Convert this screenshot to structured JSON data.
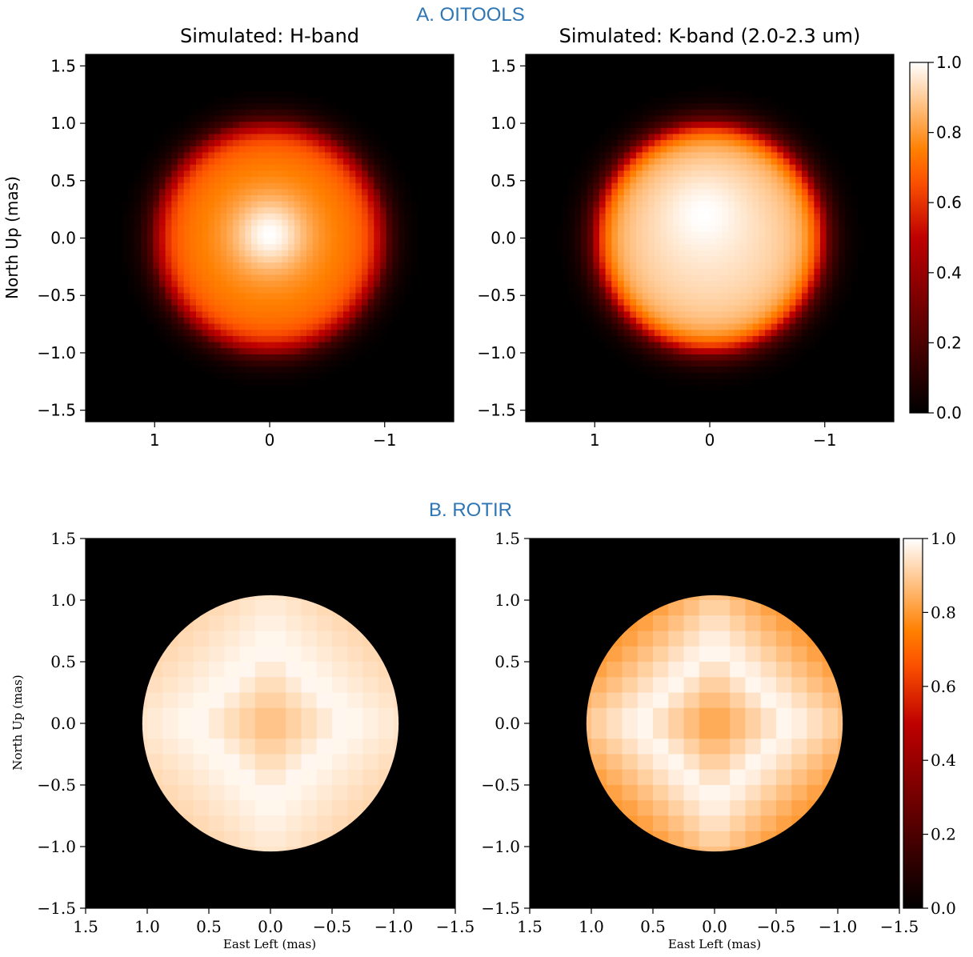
{
  "sections": [
    {
      "label": "A. OITOOLS"
    },
    {
      "label": "B. ROTIR"
    }
  ],
  "chart_data": [
    {
      "type": "heatmap",
      "title": "Simulated: H-band",
      "xlabel": "",
      "ylabel": "North Up (mas)",
      "xlim": [
        1.6,
        -1.6
      ],
      "ylim": [
        -1.6,
        1.6
      ],
      "xticks": [
        1,
        0,
        -1
      ],
      "xtick_labels": [
        "1",
        "0",
        "−1"
      ],
      "yticks": [
        1.5,
        1.0,
        0.5,
        0.0,
        -0.5,
        -1.0,
        -1.5
      ],
      "ytick_labels": [
        "1.5",
        "1.0",
        "0.5",
        "0.0",
        "−0.5",
        "−1.0",
        "−1.5"
      ],
      "colormap": "gist_heat",
      "stellar_radius_mas": 1.03,
      "peak_offset_mas": [
        0.0,
        0.03
      ],
      "limb_intensity": 0.45,
      "disk_intensity": 0.78,
      "peak_intensity": 1.0
    },
    {
      "type": "heatmap",
      "title": "Simulated: K-band (2.0-2.3 um)",
      "xlabel": "",
      "ylabel": "",
      "xlim": [
        1.6,
        -1.6
      ],
      "ylim": [
        -1.6,
        1.6
      ],
      "xticks": [
        1,
        0,
        -1
      ],
      "xtick_labels": [
        "1",
        "0",
        "−1"
      ],
      "yticks": [
        1.5,
        1.0,
        0.5,
        0.0,
        -0.5,
        -1.0,
        -1.5
      ],
      "ytick_labels": [
        "1.5",
        "1.0",
        "0.5",
        "0.0",
        "−0.5",
        "−1.0",
        "−1.5"
      ],
      "colormap": "gist_heat",
      "stellar_radius_mas": 1.03,
      "peak_offset_mas": [
        0.05,
        0.2
      ],
      "limb_intensity": 0.55,
      "disk_intensity": 0.95,
      "peak_intensity": 1.0,
      "colorbar": {
        "ticks": [
          "1.0",
          "0.8",
          "0.6",
          "0.4",
          "0.2",
          "0.0"
        ],
        "range": [
          0,
          1
        ]
      }
    },
    {
      "type": "heatmap",
      "title": "",
      "xlabel": "East Left (mas)",
      "ylabel": "North Up (mas)",
      "xlim": [
        1.5,
        -1.5
      ],
      "ylim": [
        -1.5,
        1.5
      ],
      "xticks": [
        1.5,
        1.0,
        0.5,
        0.0,
        -0.5,
        -1.0,
        -1.5
      ],
      "xtick_labels": [
        "1.5",
        "1.0",
        "0.5",
        "0.0",
        "−0.5",
        "−1.0",
        "−1.5"
      ],
      "yticks": [
        1.5,
        1.0,
        0.5,
        0.0,
        -0.5,
        -1.0,
        -1.5
      ],
      "ytick_labels": [
        "1.5",
        "1.0",
        "0.5",
        "0.0",
        "−0.5",
        "−1.0",
        "−1.5"
      ],
      "colormap": "gist_heat",
      "stellar_radius_mas": 1.04,
      "center_intensity": 0.86,
      "ring_intensity": 0.99,
      "limb_intensity": 0.92
    },
    {
      "type": "heatmap",
      "title": "",
      "xlabel": "East Left (mas)",
      "ylabel": "",
      "xlim": [
        1.5,
        -1.5
      ],
      "ylim": [
        -1.5,
        1.5
      ],
      "xticks": [
        1.5,
        1.0,
        0.5,
        0.0,
        -0.5,
        -1.0,
        -1.5
      ],
      "xtick_labels": [
        "1.5",
        "1.0",
        "0.5",
        "0.0",
        "−0.5",
        "−1.0",
        "−1.5"
      ],
      "yticks": [
        1.5,
        1.0,
        0.5,
        0.0,
        -0.5,
        -1.0,
        -1.5
      ],
      "ytick_labels": [
        "1.5",
        "1.0",
        "0.5",
        "0.0",
        "−0.5",
        "−1.0",
        "−1.5"
      ],
      "colormap": "gist_heat",
      "stellar_radius_mas": 1.04,
      "center_intensity": 0.8,
      "ring_intensity": 0.99,
      "limb_intensity": 0.8,
      "colorbar": {
        "ticks": [
          "1.0",
          "0.8",
          "0.6",
          "0.4",
          "0.2",
          "0.0"
        ],
        "range": [
          0,
          1
        ]
      }
    }
  ]
}
